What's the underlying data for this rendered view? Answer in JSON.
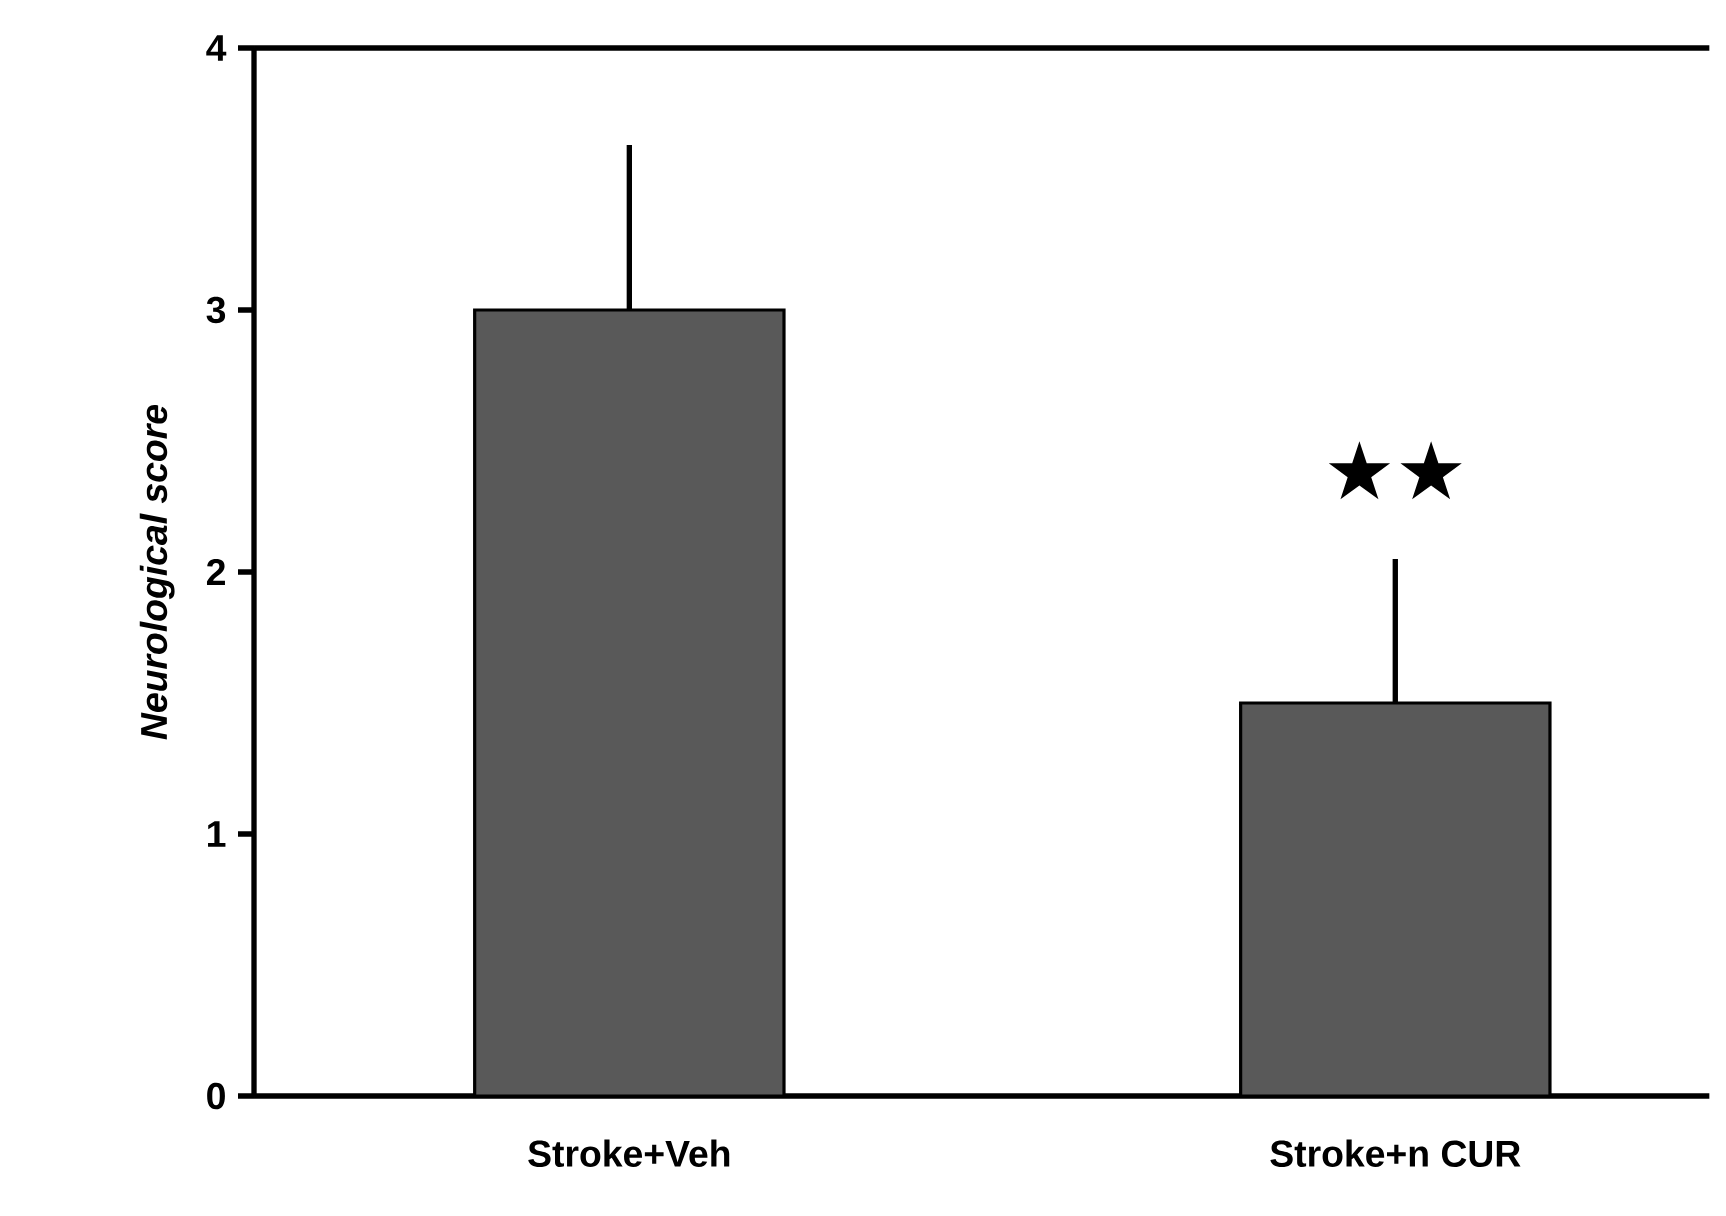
{
  "chart_data": {
    "type": "bar",
    "ylabel": "Neurological score",
    "categories": [
      "Stroke+Veh",
      "Stroke+n CUR"
    ],
    "values": [
      3,
      1.5
    ],
    "color": "#595959",
    "errors": [
      [
        3,
        3.63
      ],
      [
        1.5,
        2.05
      ]
    ],
    "ylim": [
      0,
      4
    ],
    "yticks": [
      0,
      1,
      2,
      3,
      4
    ],
    "grid": false,
    "annotations": [
      "★★"
    ]
  }
}
